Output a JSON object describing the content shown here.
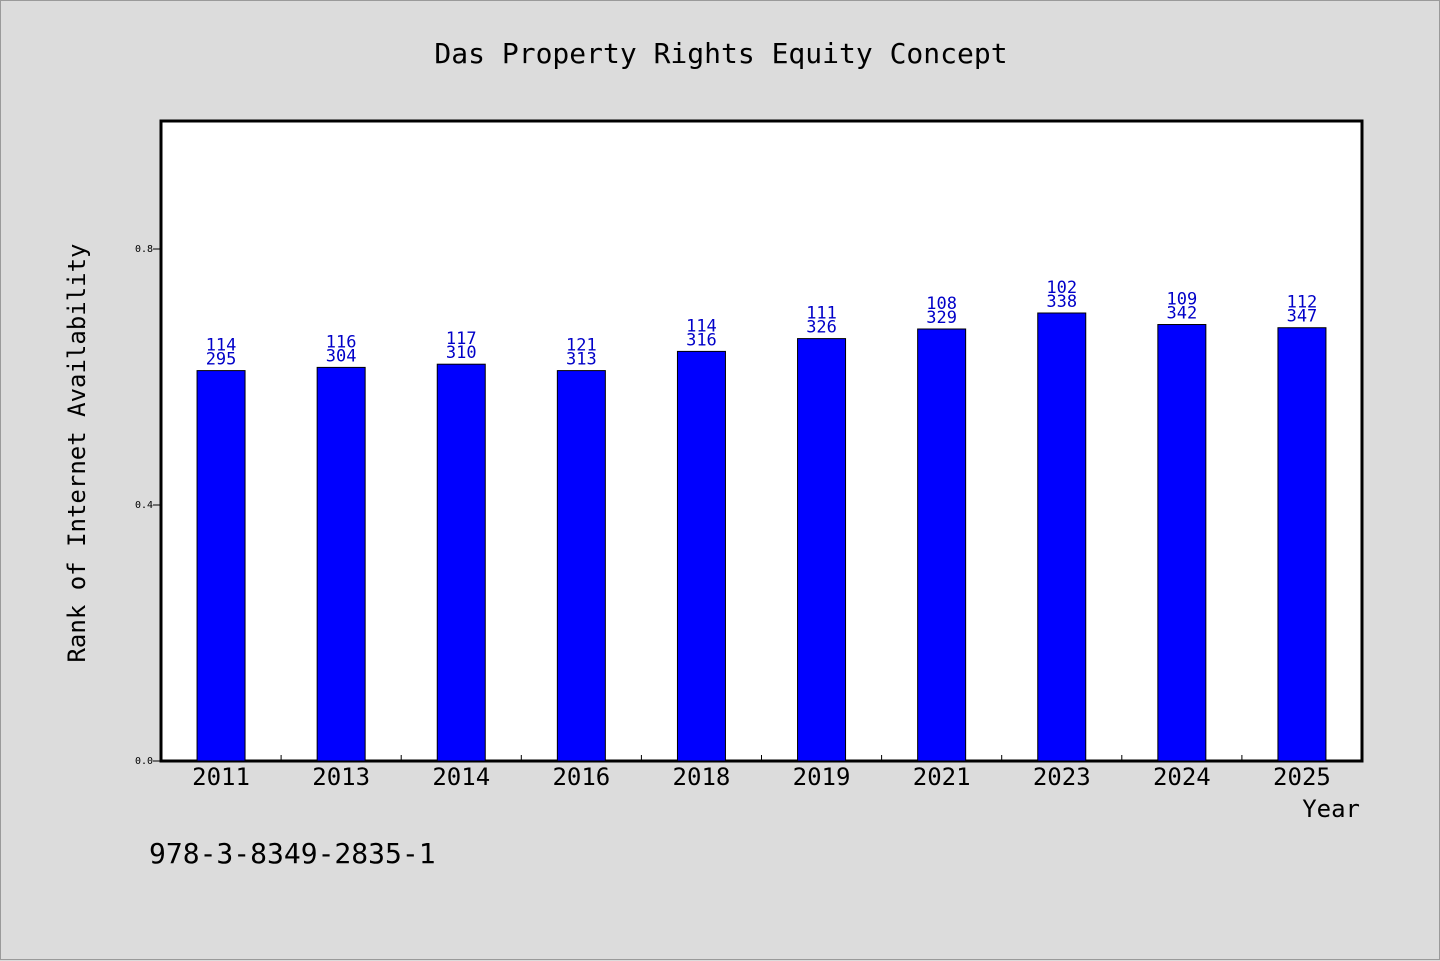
{
  "chart_data": {
    "type": "bar",
    "title": "Das Property Rights Equity Concept",
    "xlabel": "Year",
    "ylabel": "Rank of Internet Availability",
    "categories": [
      "2011",
      "2013",
      "2014",
      "2016",
      "2018",
      "2019",
      "2021",
      "2023",
      "2024",
      "2025"
    ],
    "values": [
      0.61,
      0.615,
      0.62,
      0.61,
      0.64,
      0.66,
      0.675,
      0.7,
      0.682,
      0.677
    ],
    "label_top": [
      "114",
      "116",
      "117",
      "121",
      "114",
      "111",
      "108",
      "102",
      "109",
      "112"
    ],
    "label_bottom": [
      "295",
      "304",
      "310",
      "313",
      "316",
      "326",
      "329",
      "338",
      "342",
      "347"
    ],
    "ylim": [
      0,
      1.0
    ],
    "yticks": [
      0.0,
      0.4,
      0.8
    ],
    "ytick_labels": [
      "0.0",
      "0.4",
      "0.8"
    ],
    "bar_color": "#0000ff",
    "label_color": "#0000c8",
    "grid": false
  },
  "footer": {
    "identifier": "978-3-8349-2835-1"
  }
}
